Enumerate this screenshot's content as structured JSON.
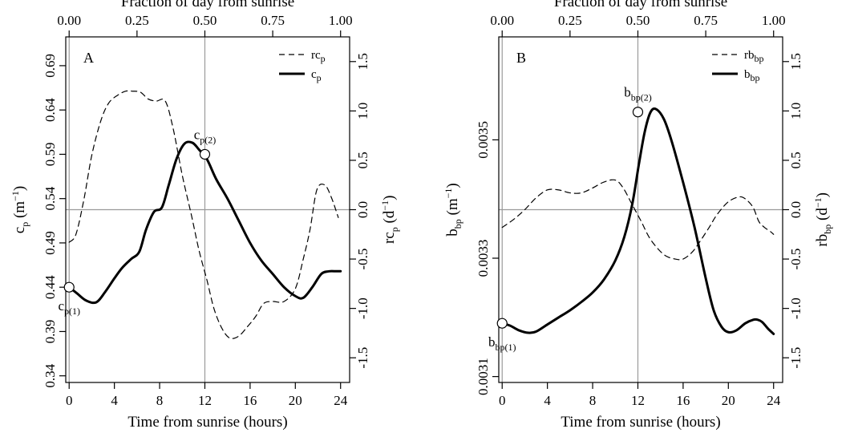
{
  "chart_data": [
    {
      "type": "line",
      "panel_label": "A",
      "top_xlabel": "Fraction of day from sunrise",
      "top_ticks": [
        "0.00",
        "0.25",
        "0.50",
        "0.75",
        "1.00"
      ],
      "top_tick_values": [
        0,
        0.25,
        0.5,
        0.75,
        1.0
      ],
      "xlabel": "Time from sunrise (hours)",
      "x_ticks": [
        "0",
        "4",
        "8",
        "12",
        "16",
        "20",
        "24"
      ],
      "x_tick_values": [
        0,
        4,
        8,
        12,
        16,
        20,
        24
      ],
      "xlim": [
        -0.3,
        24.8
      ],
      "ylabel_left": {
        "base": "c",
        "sub": "p",
        "rest": " (m",
        "sup": "−1",
        "end": ")"
      },
      "ylim_left": [
        0.3325,
        0.7225
      ],
      "yticks_left": [
        "0.34",
        "0.39",
        "0.44",
        "0.49",
        "0.54",
        "0.59",
        "0.64",
        "0.69"
      ],
      "ytick_values_left": [
        0.34,
        0.39,
        0.44,
        0.49,
        0.54,
        0.59,
        0.64,
        0.69
      ],
      "ylabel_right": {
        "base": "rc",
        "sub": "p",
        "rest": " (d",
        "sup": "−1",
        "end": ")"
      },
      "ylim_right": [
        -1.75,
        1.75
      ],
      "yticks_right": [
        "-1.5",
        "-1.0",
        "-0.5",
        "0.0",
        "0.5",
        "1.0",
        "1.5"
      ],
      "ytick_values_right": [
        -1.5,
        -1.0,
        -0.5,
        0.0,
        0.5,
        1.0,
        1.5
      ],
      "legend_position": "top-right",
      "vline_x": [
        0,
        12
      ],
      "hline_right": 0,
      "series": [
        {
          "name": "rc",
          "name_sub": "p",
          "style": "dashed",
          "axis": "right",
          "x": [
            0,
            0.6,
            1.3,
            2,
            2.8,
            3.5,
            4.3,
            5,
            5.6,
            6.3,
            7,
            7.7,
            8.5,
            9.2,
            10,
            10.8,
            11.5,
            12.2,
            12.8,
            13.5,
            14.2,
            15,
            15.8,
            16.5,
            17.2,
            18,
            19,
            20,
            20.7,
            21.3,
            21.9,
            22.6,
            23.2,
            23.8
          ],
          "y": [
            -0.33,
            -0.25,
            0.1,
            0.55,
            0.9,
            1.08,
            1.16,
            1.2,
            1.2,
            1.19,
            1.12,
            1.1,
            1.1,
            0.82,
            0.35,
            -0.05,
            -0.42,
            -0.72,
            -1.0,
            -1.2,
            -1.3,
            -1.28,
            -1.18,
            -1.08,
            -0.95,
            -0.93,
            -0.93,
            -0.8,
            -0.5,
            -0.2,
            0.2,
            0.25,
            0.12,
            -0.08
          ]
        },
        {
          "name": "c",
          "name_sub": "p",
          "style": "solid",
          "axis": "left",
          "x": [
            0,
            0.7,
            1.5,
            2.4,
            3.2,
            4,
            4.7,
            5.5,
            6.2,
            6.8,
            7.5,
            8.2,
            8.8,
            9.5,
            10.2,
            10.9,
            11.5,
            12.2,
            13,
            14,
            15,
            16,
            17,
            18,
            19,
            20,
            20.7,
            21.5,
            22.3,
            23,
            23.6,
            24
          ],
          "y": [
            0.44,
            0.433,
            0.425,
            0.423,
            0.435,
            0.45,
            0.462,
            0.472,
            0.48,
            0.505,
            0.525,
            0.53,
            0.555,
            0.585,
            0.602,
            0.603,
            0.595,
            0.584,
            0.562,
            0.54,
            0.515,
            0.49,
            0.47,
            0.455,
            0.44,
            0.43,
            0.428,
            0.44,
            0.455,
            0.458,
            0.458,
            0.458
          ]
        }
      ],
      "markers": [
        {
          "x": 0,
          "y": 0.44,
          "label": "c",
          "label_sub": "p(1)",
          "label_pos": "below"
        },
        {
          "x": 12,
          "y": 0.59,
          "label": "c",
          "label_sub": "p(2)",
          "label_pos": "above"
        }
      ]
    },
    {
      "type": "line",
      "panel_label": "B",
      "top_xlabel": "Fraction of day from sunrise",
      "top_ticks": [
        "0.00",
        "0.25",
        "0.50",
        "0.75",
        "1.00"
      ],
      "top_tick_values": [
        0,
        0.25,
        0.5,
        0.75,
        1.0
      ],
      "xlabel": "Time from sunrise (hours)",
      "x_ticks": [
        "0",
        "4",
        "8",
        "12",
        "16",
        "20",
        "24"
      ],
      "x_tick_values": [
        0,
        4,
        8,
        12,
        16,
        20,
        24
      ],
      "xlim": [
        -0.3,
        24.8
      ],
      "ylabel_left": {
        "base": "b",
        "sub": "bp",
        "rest": " (m",
        "sup": "−1",
        "end": ")"
      },
      "ylim_left": [
        0.00309,
        0.003674
      ],
      "yticks_left": [
        "0.0031",
        "0.0033",
        "0.0035"
      ],
      "ytick_values_left": [
        0.0031,
        0.0033,
        0.0035
      ],
      "ylabel_right": {
        "base": "rb",
        "sub": "bp",
        "rest": " (d",
        "sup": "−1",
        "end": ")"
      },
      "ylim_right": [
        -1.75,
        1.75
      ],
      "yticks_right": [
        "-1.5",
        "-1.0",
        "-0.5",
        "0.0",
        "0.5",
        "1.0",
        "1.5"
      ],
      "ytick_values_right": [
        -1.5,
        -1.0,
        -0.5,
        0.0,
        0.5,
        1.0,
        1.5
      ],
      "legend_position": "top-right",
      "vline_x": [
        0,
        12
      ],
      "hline_right": 0,
      "series": [
        {
          "name": "rb",
          "name_sub": "bp",
          "style": "dashed",
          "axis": "right",
          "x": [
            0,
            1,
            2,
            3,
            4,
            5,
            6,
            7,
            8,
            9,
            10,
            10.7,
            11.5,
            12.3,
            13,
            13.8,
            14.5,
            15.3,
            16,
            16.8,
            17.5,
            18.3,
            19,
            20,
            21,
            21.6,
            22.2,
            22.7,
            23.2,
            23.7,
            24
          ],
          "y": [
            -0.18,
            -0.1,
            0.0,
            0.12,
            0.2,
            0.2,
            0.17,
            0.17,
            0.22,
            0.28,
            0.3,
            0.22,
            0.05,
            -0.12,
            -0.28,
            -0.4,
            -0.47,
            -0.5,
            -0.5,
            -0.43,
            -0.32,
            -0.18,
            -0.05,
            0.08,
            0.13,
            0.1,
            0.02,
            -0.12,
            -0.18,
            -0.22,
            -0.25
          ]
        },
        {
          "name": "b",
          "name_sub": "bp",
          "style": "solid",
          "axis": "left",
          "x": [
            0,
            0.7,
            1.5,
            2.3,
            3,
            4,
            5,
            6,
            7,
            8,
            9,
            10,
            10.8,
            11.5,
            12.1,
            12.6,
            13.1,
            13.6,
            14.3,
            15,
            16,
            17,
            18,
            18.7,
            19.4,
            20,
            20.7,
            21.5,
            22.2,
            22.6,
            23,
            23.5,
            24
          ],
          "y": [
            0.00319,
            0.003186,
            0.003178,
            0.003174,
            0.003176,
            0.003188,
            0.0032,
            0.003212,
            0.003226,
            0.003242,
            0.003264,
            0.003296,
            0.003336,
            0.003391,
            0.00346,
            0.003513,
            0.003546,
            0.003552,
            0.003535,
            0.003497,
            0.003428,
            0.003353,
            0.003266,
            0.003212,
            0.003184,
            0.003175,
            0.003178,
            0.00319,
            0.003196,
            0.003196,
            0.003192,
            0.003181,
            0.003172
          ]
        }
      ],
      "markers": [
        {
          "x": 0,
          "y": 0.00319,
          "label": "b",
          "label_sub": "bp(1)",
          "label_pos": "below"
        },
        {
          "x": 12,
          "y": 0.003547,
          "label": "b",
          "label_sub": "bp(2)",
          "label_pos": "above"
        }
      ]
    }
  ]
}
